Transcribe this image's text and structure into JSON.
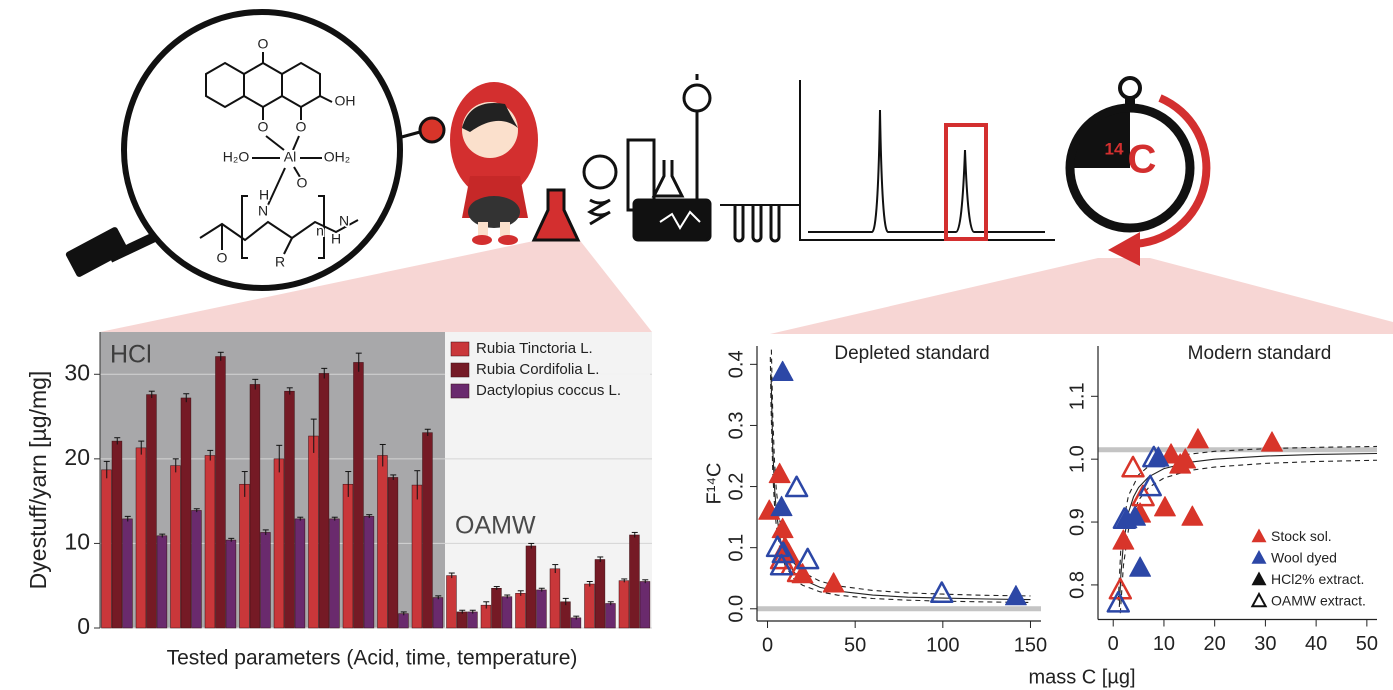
{
  "illustration": {
    "structure_labels": [
      "O",
      "OH",
      "O",
      "O",
      "H₂O",
      "Al",
      "OH₂",
      "H",
      "N",
      "O",
      "n",
      "N",
      "H",
      "O",
      "R"
    ],
    "stopwatch_label": {
      "isotope_mass": "14",
      "element": "C"
    }
  },
  "scatter_x_label": "mass C [µg]",
  "chart_data": [
    {
      "type": "bar",
      "y_label": "Dyestuff/yarn [µg/mg]",
      "x_label": "Tested parameters (Acid, time, temperature)",
      "categories": [
        null,
        null,
        null,
        null,
        null,
        null,
        null,
        null,
        null,
        null,
        null,
        null,
        null,
        null,
        null,
        null
      ],
      "series": [
        {
          "name": "Rubia Tinctoria L.",
          "color": "#c9373a",
          "values": [
            18.7,
            21.3,
            19.2,
            20.4,
            17.0,
            20.0,
            22.7,
            17.0,
            20.4,
            16.9,
            6.2,
            2.7,
            4.1,
            7.0,
            5.2,
            5.6
          ],
          "errors": [
            1.0,
            0.8,
            0.8,
            0.6,
            1.5,
            1.6,
            2.0,
            1.5,
            1.3,
            1.7,
            0.3,
            0.4,
            0.3,
            0.5,
            0.3,
            0.2
          ]
        },
        {
          "name": "Rubia Cordifolia L.",
          "color": "#751a25",
          "values": [
            22.1,
            27.6,
            27.2,
            32.1,
            28.8,
            28.0,
            30.1,
            31.4,
            17.8,
            23.1,
            1.9,
            4.7,
            9.7,
            3.1,
            8.1,
            11.0
          ],
          "errors": [
            0.4,
            0.4,
            0.5,
            0.5,
            0.6,
            0.4,
            0.6,
            1.1,
            0.3,
            0.4,
            0.2,
            0.2,
            0.3,
            0.4,
            0.3,
            0.3
          ]
        },
        {
          "name": "Dactylopius coccus L.",
          "color": "#6a2a6d",
          "values": [
            12.9,
            10.9,
            13.9,
            10.4,
            11.3,
            12.9,
            12.9,
            13.2,
            1.7,
            3.6,
            1.9,
            3.7,
            4.5,
            1.2,
            2.9,
            5.5
          ],
          "errors": [
            0.3,
            0.2,
            0.2,
            0.2,
            0.3,
            0.2,
            0.2,
            0.2,
            0.2,
            0.2,
            0.2,
            0.2,
            0.2,
            0.2,
            0.2,
            0.2
          ]
        }
      ],
      "ylim": [
        0,
        35
      ],
      "yticks": [
        0,
        10,
        20,
        30
      ],
      "grid": true,
      "legend": "top-right",
      "regions": [
        {
          "label": "HCl",
          "from": 0,
          "to": 10,
          "color": "#a8a8aa"
        },
        {
          "label": "OAMW",
          "from": 10,
          "to": 16,
          "color": "#f3f3f3"
        }
      ]
    },
    {
      "type": "scatter",
      "title": "Depleted standard",
      "y_label": "F¹⁴C",
      "xlim": [
        -6,
        156
      ],
      "ylim": [
        -0.02,
        0.43
      ],
      "xticks": [
        0,
        50,
        100,
        150
      ],
      "yticks": [
        {
          "value": 0,
          "label": "0.0"
        },
        0.1,
        0.2,
        0.3,
        0.4
      ],
      "reference_line": 0,
      "series": [
        {
          "color": "#d8352a",
          "marker": "filled",
          "x": [
            1,
            6.9,
            8.6,
            10,
            12,
            20,
            37.7
          ],
          "values": [
            0.16,
            0.22,
            0.13,
            0.1,
            0.09,
            0.056,
            0.041
          ]
        },
        {
          "color": "#2c47a6",
          "marker": "filled",
          "x": [
            8.6,
            8,
            141.7
          ],
          "values": [
            0.387,
            0.166,
            0.02
          ]
        },
        {
          "color": "#d8352a",
          "marker": "open",
          "x": [
            17.7,
            8,
            14
          ],
          "values": [
            0.059,
            0.08,
            0.07
          ]
        },
        {
          "color": "#2c47a6",
          "marker": "open",
          "x": [
            16.6,
            5.7,
            9,
            22.9,
            99.4,
            8
          ],
          "values": [
            0.198,
            0.1,
            0.09,
            0.08,
            0.025,
            0.07
          ]
        }
      ],
      "fits": [
        {
          "style": "solid",
          "x": [
            2,
            3,
            4,
            5,
            7,
            10,
            15,
            20,
            30,
            40,
            60,
            80,
            100,
            125,
            150
          ],
          "values": [
            0.385,
            0.26,
            0.198,
            0.16,
            0.117,
            0.085,
            0.06,
            0.048,
            0.035,
            0.029,
            0.0225,
            0.019,
            0.0175,
            0.016,
            0.015
          ]
        },
        {
          "style": "dashed",
          "x": [
            2.2,
            3,
            4,
            5,
            7,
            10,
            15,
            20,
            30,
            40,
            60,
            80,
            100,
            125,
            150
          ],
          "values": [
            0.424,
            0.315,
            0.24,
            0.195,
            0.144,
            0.105,
            0.075,
            0.06,
            0.045,
            0.0375,
            0.03,
            0.026,
            0.024,
            0.022,
            0.021
          ]
        },
        {
          "style": "dashed",
          "x": [
            1.6,
            2,
            3,
            4,
            5,
            7,
            10,
            15,
            20,
            30,
            40,
            60,
            80,
            100,
            125,
            150
          ],
          "values": [
            0.412,
            0.331,
            0.223,
            0.169,
            0.136,
            0.099,
            0.071,
            0.049,
            0.0385,
            0.0277,
            0.0223,
            0.0168,
            0.0141,
            0.0125,
            0.0112,
            0.0103
          ]
        }
      ]
    },
    {
      "type": "scatter",
      "title": "Modern standard",
      "xlim": [
        -3,
        52
      ],
      "ylim": [
        0.745,
        1.18
      ],
      "xticks": [
        0,
        10,
        20,
        30,
        40,
        50
      ],
      "yticks": [
        0.8,
        0.9,
        {
          "value": 1,
          "label": "1.0"
        },
        1.1
      ],
      "reference_line": 1.015,
      "legend": "bottom-right",
      "legend_entries": [
        {
          "label": "Stock sol.",
          "color": "#d8352a",
          "marker": "filled"
        },
        {
          "label": "Wool dyed",
          "color": "#2c47a6",
          "marker": "filled"
        },
        {
          "label": "HCl2% extract.",
          "color": "#111111",
          "marker": "filled"
        },
        {
          "label": "OAMW extract.",
          "color": "#111111",
          "marker": "open"
        }
      ],
      "series": [
        {
          "color": "#d8352a",
          "marker": "filled",
          "x": [
            2,
            11.4,
            14.2,
            16.7,
            31.3,
            5.3,
            10.2,
            15.6,
            13.2
          ],
          "values": [
            0.87,
            1.007,
            0.999,
            1.031,
            1.026,
            0.913,
            0.923,
            0.908,
            0.991
          ]
        },
        {
          "color": "#2c47a6",
          "marker": "filled",
          "x": [
            5.3,
            8.9,
            4.3,
            2.6
          ],
          "values": [
            0.827,
            1.002,
            0.908,
            0.904
          ]
        },
        {
          "color": "#d8352a",
          "marker": "open",
          "x": [
            3.9,
            1.4,
            5.9
          ],
          "values": [
            0.986,
            0.792,
            0.94
          ]
        },
        {
          "color": "#2c47a6",
          "marker": "open",
          "x": [
            1,
            2.2,
            7.3,
            8
          ],
          "values": [
            0.771,
            0.904,
            0.956,
            1.002
          ]
        }
      ],
      "fits": [
        {
          "style": "solid",
          "x": [
            1.2,
            1.5,
            2,
            3,
            4,
            5,
            7,
            10,
            15,
            20,
            30,
            40,
            52
          ],
          "values": [
            0.765,
            0.815,
            0.865,
            0.915,
            0.94,
            0.955,
            0.972,
            0.985,
            0.995,
            1.0,
            1.005,
            1.0075,
            1.009
          ]
        },
        {
          "style": "dashed",
          "x": [
            1,
            1.5,
            2,
            3,
            5,
            7,
            10,
            15,
            20,
            30,
            40,
            52
          ],
          "values": [
            0.775,
            0.858,
            0.9,
            0.942,
            0.975,
            0.989,
            1.0,
            1.008,
            1.0125,
            1.0167,
            1.0188,
            1.0202
          ]
        },
        {
          "style": "dashed",
          "x": [
            1.4,
            2,
            3,
            5,
            7,
            10,
            15,
            20,
            30,
            40,
            52
          ],
          "values": [
            0.755,
            0.83,
            0.888,
            0.935,
            0.955,
            0.97,
            0.982,
            0.9875,
            0.9933,
            0.9963,
            0.9983
          ]
        }
      ]
    }
  ]
}
